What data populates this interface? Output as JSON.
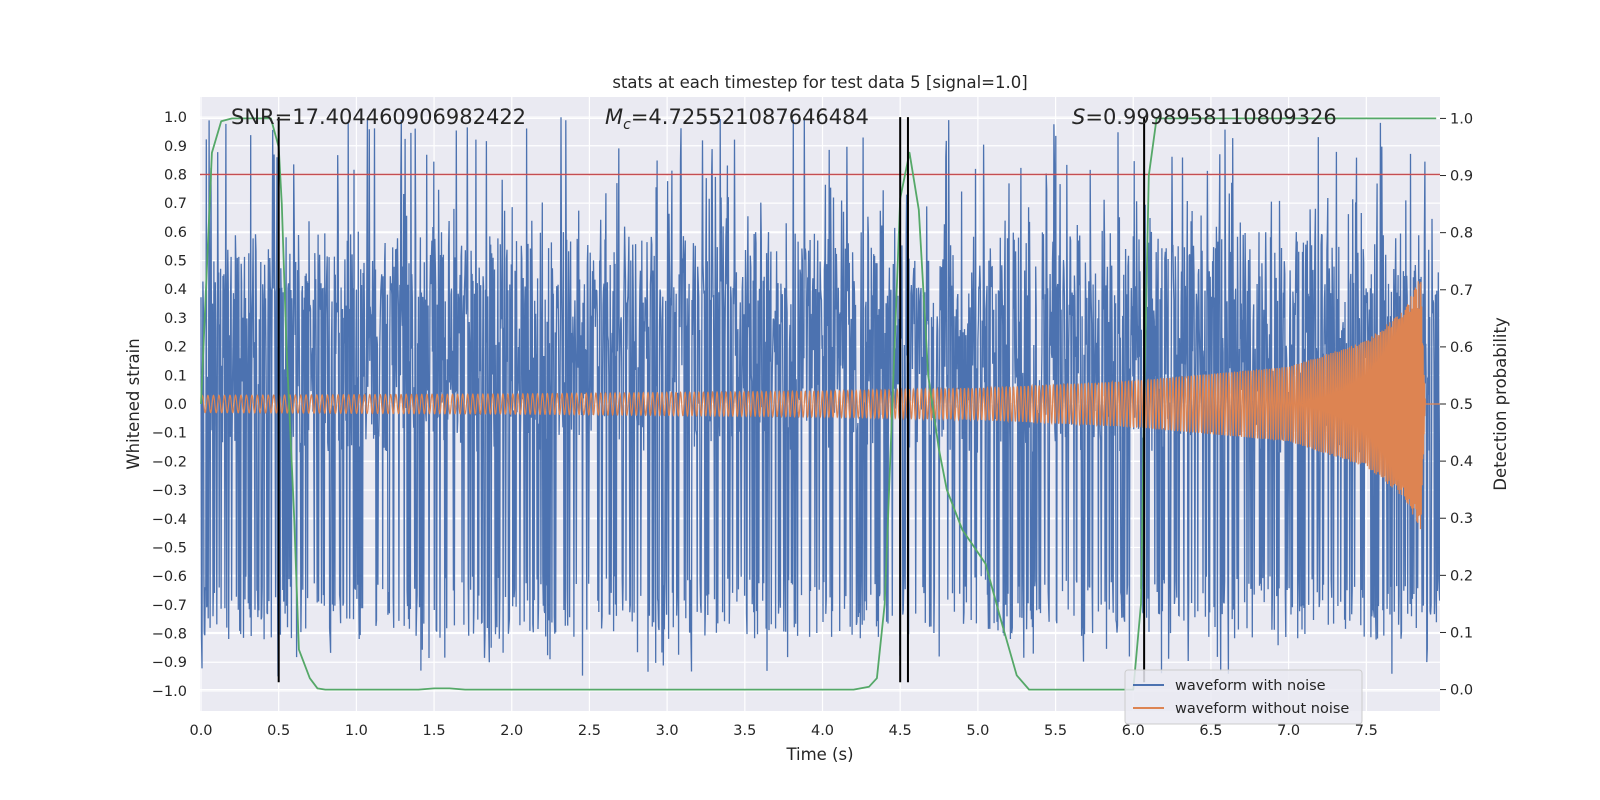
{
  "chart_data": {
    "type": "line",
    "title": "stats at each timestep for test data 5 [signal=1.0]",
    "xlabel": "Time (s)",
    "ylabel": "Whitened strain",
    "y2label": "Detection probability",
    "xlim": [
      0,
      8.0
    ],
    "ylim": [
      -1.07,
      1.07
    ],
    "y2lim": [
      -0.0375,
      1.0375
    ],
    "x_ticks": [
      0.0,
      0.5,
      1.0,
      1.5,
      2.0,
      2.5,
      3.0,
      3.5,
      4.0,
      4.5,
      5.0,
      5.5,
      6.0,
      6.5,
      7.0,
      7.5
    ],
    "x_tick_labels": [
      "0.0",
      "0.5",
      "1.0",
      "1.5",
      "2.0",
      "2.5",
      "3.0",
      "3.5",
      "4.0",
      "4.5",
      "5.0",
      "5.5",
      "6.0",
      "6.5",
      "7.0",
      "7.5"
    ],
    "y_ticks": [
      1.0,
      0.9,
      0.8,
      0.7,
      0.6,
      0.5,
      0.4,
      0.3,
      0.2,
      0.1,
      0.0,
      -0.1,
      -0.2,
      -0.3,
      -0.4,
      -0.5,
      -0.6,
      -0.7,
      -0.8,
      -0.9,
      -1.0
    ],
    "y_tick_labels": [
      "1.0",
      "0.9",
      "0.8",
      "0.7",
      "0.6",
      "0.5",
      "0.4",
      "0.3",
      "0.2",
      "0.1",
      "0.0",
      "−0.1",
      "−0.2",
      "−0.3",
      "−0.4",
      "−0.5",
      "−0.6",
      "−0.7",
      "−0.8",
      "−0.9",
      "−1.0"
    ],
    "y2_ticks": [
      1.0,
      0.9,
      0.8,
      0.7,
      0.6,
      0.5,
      0.4,
      0.3,
      0.2,
      0.1,
      0.0
    ],
    "y2_tick_labels": [
      "1.0",
      "0.9",
      "0.8",
      "0.7",
      "0.6",
      "0.5",
      "0.4",
      "0.3",
      "0.2",
      "0.1",
      "0.0"
    ],
    "grid": true,
    "annotations": {
      "snr": "SNR=17.404460906982422",
      "mc_symbol": "M",
      "mc_sub": "c",
      "mc_value": "=4.725521087646484",
      "s_symbol": "S",
      "s_value": "=0.9998958110809326"
    },
    "legend": {
      "placement": "lower-right",
      "entries": [
        "waveform with noise",
        "waveform without noise"
      ]
    },
    "threshold_line": {
      "y": 0.8,
      "color": "#c44e52"
    },
    "vertical_lines_x": [
      0.5,
      4.5,
      4.55,
      6.07
    ],
    "series": [
      {
        "name": "waveform with noise",
        "color": "#4c72b0",
        "kind": "noise",
        "x_start": 0.0,
        "x_end": 8.0,
        "base_band": [
          -0.17,
          0.42
        ],
        "typical_peak": 0.6,
        "typical_trough": -0.6,
        "max": 1.0,
        "min": -0.95
      },
      {
        "name": "waveform without noise",
        "color": "#dd8452",
        "kind": "chirp",
        "x_start": 0.0,
        "x_end": 7.88,
        "amplitude_envelope": [
          {
            "x": 0.0,
            "a": 0.03
          },
          {
            "x": 2.0,
            "a": 0.035
          },
          {
            "x": 4.0,
            "a": 0.045
          },
          {
            "x": 5.0,
            "a": 0.055
          },
          {
            "x": 6.0,
            "a": 0.08
          },
          {
            "x": 7.0,
            "a": 0.13
          },
          {
            "x": 7.5,
            "a": 0.22
          },
          {
            "x": 7.75,
            "a": 0.33
          },
          {
            "x": 7.85,
            "a": 0.45
          },
          {
            "x": 7.88,
            "a": 0.0
          }
        ],
        "tail_value": 0.0
      },
      {
        "name": "detection probability",
        "color": "#55a868",
        "axis": "right",
        "x": [
          0.0,
          0.07,
          0.13,
          0.2,
          0.3,
          0.45,
          0.5,
          0.52,
          0.55,
          0.6,
          0.63,
          0.7,
          0.75,
          0.8,
          1.0,
          1.4,
          1.5,
          1.6,
          1.7,
          2.0,
          3.0,
          4.0,
          4.2,
          4.3,
          4.35,
          4.4,
          4.45,
          4.5,
          4.56,
          4.62,
          4.68,
          4.75,
          4.8,
          4.9,
          5.0,
          5.05,
          5.1,
          5.15,
          5.25,
          5.33,
          5.4,
          5.5,
          6.0,
          6.05,
          6.07,
          6.1,
          6.15,
          6.2,
          7.5,
          7.95
        ],
        "y": [
          0.5,
          0.94,
          0.995,
          1.0,
          1.0,
          1.0,
          0.95,
          0.85,
          0.6,
          0.3,
          0.07,
          0.02,
          0.002,
          0.0,
          0.0,
          0.0,
          0.002,
          0.002,
          0.0,
          0.0,
          0.0,
          0.0,
          0.0,
          0.005,
          0.02,
          0.15,
          0.5,
          0.86,
          0.94,
          0.84,
          0.55,
          0.42,
          0.35,
          0.28,
          0.24,
          0.22,
          0.17,
          0.12,
          0.025,
          0.0,
          0.0,
          0.0,
          0.0,
          0.15,
          0.5,
          0.9,
          1.0,
          1.0,
          1.0,
          1.0
        ]
      }
    ]
  }
}
